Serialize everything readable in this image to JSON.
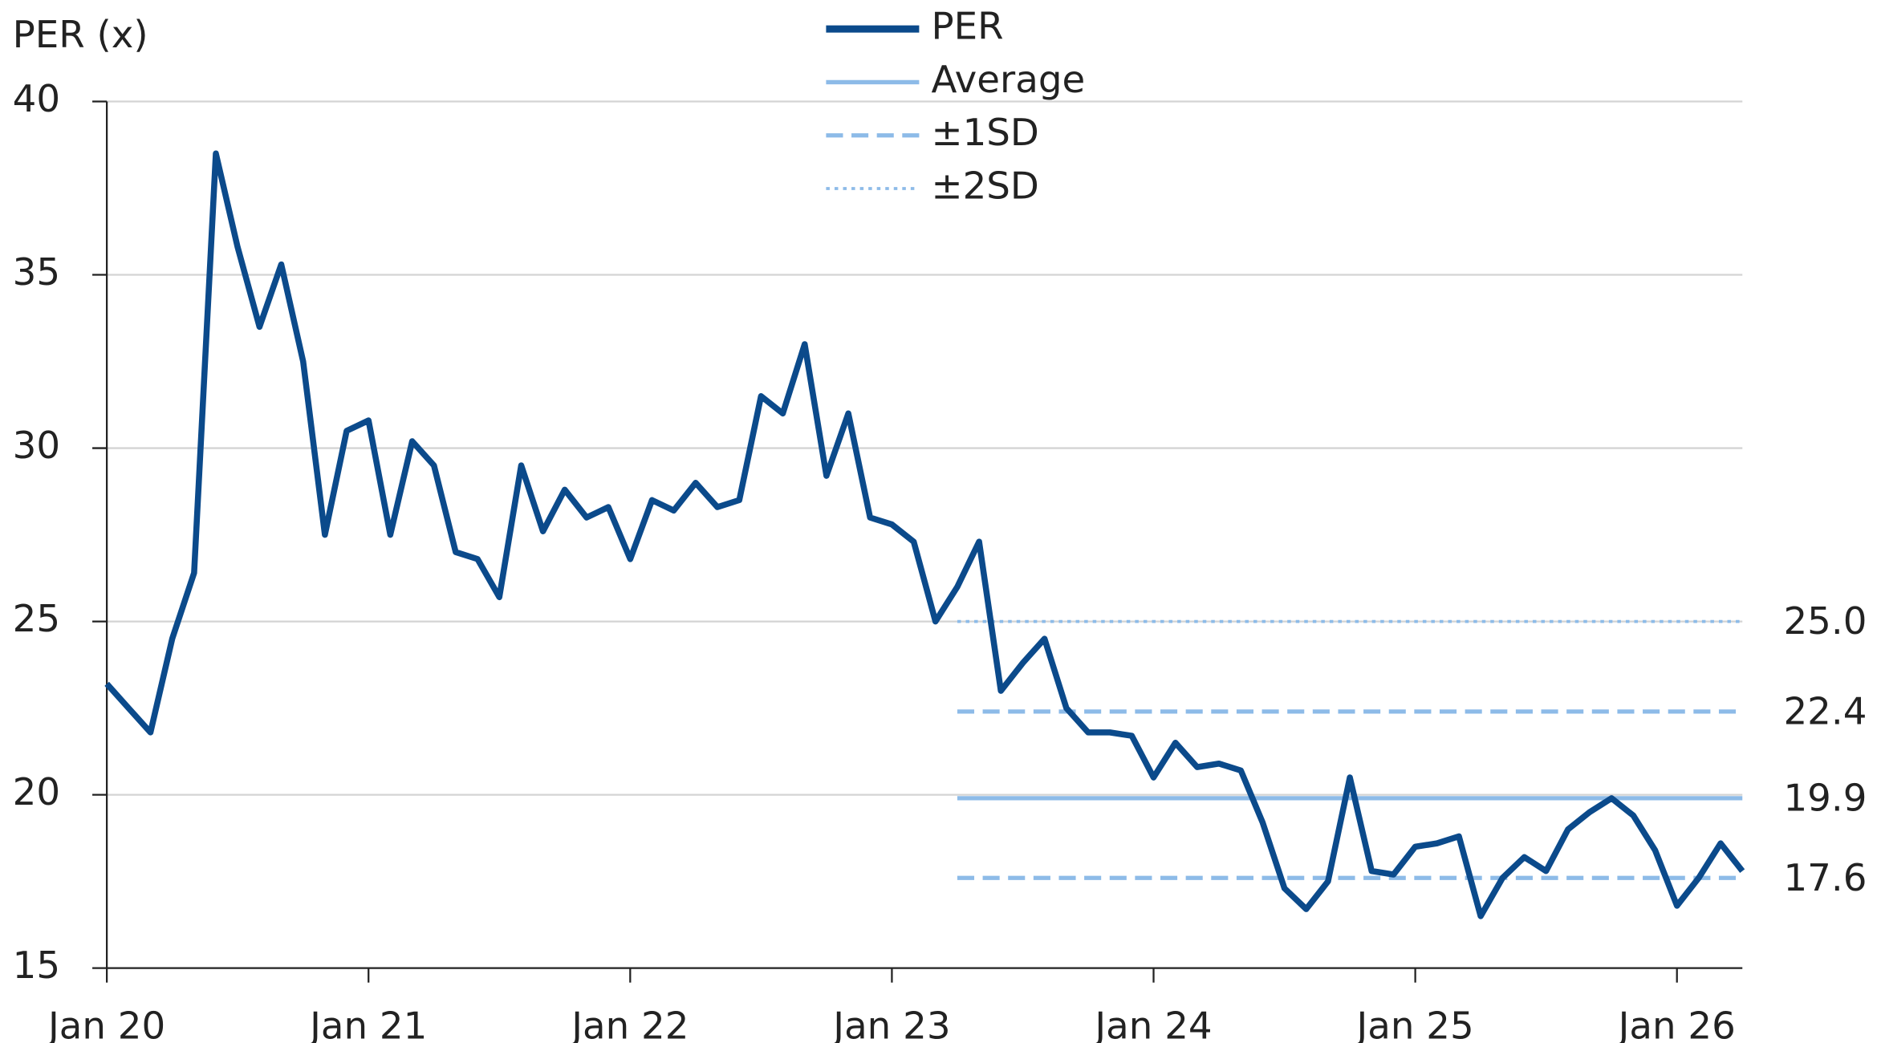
{
  "chart_data": {
    "type": "line",
    "y_axis_label": "PER (x)",
    "x": [
      "2020-01",
      "2020-02",
      "2020-03",
      "2020-04",
      "2020-05",
      "2020-06",
      "2020-07",
      "2020-08",
      "2020-09",
      "2020-10",
      "2020-11",
      "2020-12",
      "2021-01",
      "2021-02",
      "2021-03",
      "2021-04",
      "2021-05",
      "2021-06",
      "2021-07",
      "2021-08",
      "2021-09",
      "2021-10",
      "2021-11",
      "2021-12",
      "2022-01",
      "2022-02",
      "2022-03",
      "2022-04",
      "2022-05",
      "2022-06",
      "2022-07",
      "2022-08",
      "2022-09",
      "2022-10",
      "2022-11",
      "2022-12",
      "2023-01",
      "2023-02",
      "2023-03",
      "2023-04",
      "2023-05",
      "2023-06",
      "2023-07",
      "2023-08",
      "2023-09",
      "2023-10",
      "2023-11",
      "2023-12",
      "2024-01",
      "2024-02",
      "2024-03",
      "2024-04",
      "2024-05",
      "2024-06",
      "2024-07",
      "2024-08",
      "2024-09",
      "2024-10",
      "2024-11",
      "2024-12",
      "2025-01",
      "2025-02",
      "2025-03",
      "2025-04",
      "2025-05",
      "2025-06",
      "2025-07",
      "2025-08",
      "2025-09",
      "2025-10",
      "2025-11",
      "2025-12",
      "2026-01",
      "2026-02",
      "2026-03",
      "2026-04"
    ],
    "series": [
      {
        "name": "PER",
        "color": "#0b4a8b",
        "values": [
          23.2,
          22.5,
          21.8,
          24.5,
          26.4,
          38.5,
          35.8,
          33.5,
          35.3,
          32.5,
          27.5,
          30.5,
          30.8,
          27.5,
          30.2,
          29.5,
          27.0,
          26.8,
          25.7,
          29.5,
          27.6,
          28.8,
          28.0,
          28.3,
          26.8,
          28.5,
          28.2,
          29.0,
          28.3,
          28.5,
          31.5,
          31.0,
          33.0,
          29.2,
          31.0,
          28.0,
          27.8,
          27.3,
          25.0,
          26.0,
          27.3,
          23.0,
          23.8,
          24.5,
          22.5,
          21.8,
          21.8,
          21.7,
          20.5,
          21.5,
          20.8,
          20.9,
          20.7,
          19.2,
          17.3,
          16.7,
          17.5,
          20.5,
          17.8,
          17.7,
          18.5,
          18.6,
          18.8,
          16.5,
          17.6,
          18.2,
          17.8,
          19.0,
          19.5,
          19.9,
          19.4,
          18.4,
          16.8,
          17.6,
          18.6,
          17.8
        ]
      }
    ],
    "reference_lines": [
      {
        "name": "Average",
        "color": "#8dbbe8",
        "style": "solid",
        "values": [
          19.9
        ],
        "value_labels": [
          "19.9"
        ]
      },
      {
        "name": "±1SD",
        "color": "#8dbbe8",
        "style": "dashed",
        "values": [
          22.4,
          17.6
        ],
        "value_labels": [
          "22.4",
          "17.6"
        ]
      },
      {
        "name": "±2SD",
        "color": "#8dbbe8",
        "style": "dotted",
        "values": [
          25
        ],
        "value_labels": [
          "25.0"
        ]
      }
    ],
    "reference_start": "2023-04",
    "xlim": [
      "2020-01",
      "2026-04"
    ],
    "xticks": [
      {
        "value": "2020-01",
        "label": "Jan 20"
      },
      {
        "value": "2021-01",
        "label": "Jan 21"
      },
      {
        "value": "2022-01",
        "label": "Jan 22"
      },
      {
        "value": "2023-01",
        "label": "Jan 23"
      },
      {
        "value": "2024-01",
        "label": "Jan 24"
      },
      {
        "value": "2025-01",
        "label": "Jan 25"
      },
      {
        "value": "2026-01",
        "label": "Jan 26"
      }
    ],
    "ylim": [
      15,
      40
    ],
    "yticks": [
      15,
      20,
      25,
      30,
      35,
      40
    ],
    "grid": true
  }
}
